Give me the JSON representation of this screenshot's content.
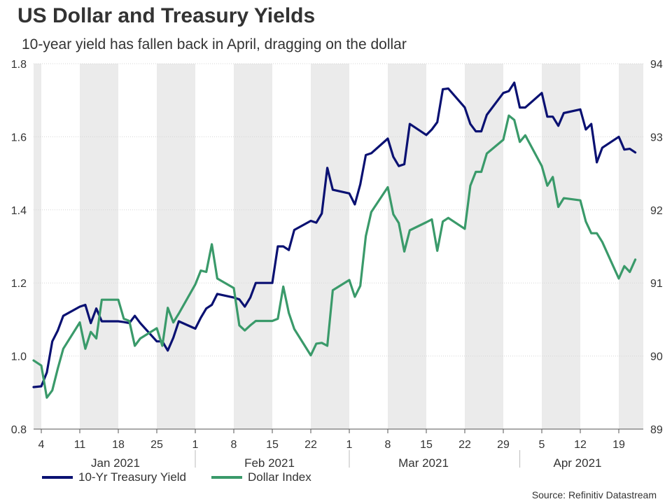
{
  "header": {
    "title": "US Dollar and Treasury Yields",
    "subtitle": "10-year yield has fallen back in April, dragging on the dollar"
  },
  "source": "Source: Refinitiv Datastream",
  "colors": {
    "yield": "#0a1172",
    "dollar": "#3a9a6a",
    "band": "#ebebeb",
    "grid": "#d6d6d6",
    "axis": "#555555"
  },
  "chart_data": {
    "type": "line",
    "x_axis": {
      "start": "2021-01-04",
      "end": "2021-04-23",
      "ticks": [
        {
          "date": "2021-01-04",
          "label": "4"
        },
        {
          "date": "2021-01-11",
          "label": "11"
        },
        {
          "date": "2021-01-18",
          "label": "18"
        },
        {
          "date": "2021-01-25",
          "label": "25"
        },
        {
          "date": "2021-02-01",
          "label": "1"
        },
        {
          "date": "2021-02-08",
          "label": "8"
        },
        {
          "date": "2021-02-15",
          "label": "15"
        },
        {
          "date": "2021-02-22",
          "label": "22"
        },
        {
          "date": "2021-03-01",
          "label": "1"
        },
        {
          "date": "2021-03-08",
          "label": "8"
        },
        {
          "date": "2021-03-15",
          "label": "15"
        },
        {
          "date": "2021-03-22",
          "label": "22"
        },
        {
          "date": "2021-03-29",
          "label": "29"
        },
        {
          "date": "2021-04-05",
          "label": "5"
        },
        {
          "date": "2021-04-12",
          "label": "12"
        },
        {
          "date": "2021-04-19",
          "label": "19"
        }
      ],
      "months": [
        {
          "label": "Jan 2021",
          "date": "2021-01-18"
        },
        {
          "label": "Feb 2021",
          "date": "2021-02-15"
        },
        {
          "label": "Mar 2021",
          "date": "2021-03-15"
        },
        {
          "label": "Apr 2021",
          "date": "2021-04-12"
        }
      ]
    },
    "y_left": {
      "min": 0.8,
      "max": 1.8,
      "ticks": [
        0.8,
        1.0,
        1.2,
        1.4,
        1.6,
        1.8
      ],
      "labels": [
        "0.8",
        "1.0",
        "1.2",
        "1.4",
        "1.6",
        "1.8"
      ]
    },
    "y_right": {
      "min": 89,
      "max": 94,
      "ticks": [
        89,
        90,
        91,
        92,
        93,
        94
      ],
      "labels": [
        "89",
        "90",
        "91",
        "92",
        "93",
        "94"
      ]
    },
    "grid": true,
    "legend_position": "bottom-left",
    "series": [
      {
        "name": "10-Yr Treasury Yield",
        "axis": "left",
        "points": [
          [
            "2021-01-01",
            0.915
          ],
          [
            "2021-01-04",
            0.917
          ],
          [
            "2021-01-05",
            0.955
          ],
          [
            "2021-01-06",
            1.04
          ],
          [
            "2021-01-07",
            1.07
          ],
          [
            "2021-01-08",
            1.11
          ],
          [
            "2021-01-11",
            1.135
          ],
          [
            "2021-01-12",
            1.14
          ],
          [
            "2021-01-13",
            1.09
          ],
          [
            "2021-01-14",
            1.13
          ],
          [
            "2021-01-15",
            1.095
          ],
          [
            "2021-01-18",
            1.095
          ],
          [
            "2021-01-19",
            1.093
          ],
          [
            "2021-01-20",
            1.09
          ],
          [
            "2021-01-21",
            1.11
          ],
          [
            "2021-01-22",
            1.09
          ],
          [
            "2021-01-25",
            1.04
          ],
          [
            "2021-01-26",
            1.04
          ],
          [
            "2021-01-27",
            1.015
          ],
          [
            "2021-01-28",
            1.05
          ],
          [
            "2021-01-29",
            1.095
          ],
          [
            "2021-02-01",
            1.075
          ],
          [
            "2021-02-02",
            1.105
          ],
          [
            "2021-02-03",
            1.13
          ],
          [
            "2021-02-04",
            1.14
          ],
          [
            "2021-02-05",
            1.17
          ],
          [
            "2021-02-08",
            1.16
          ],
          [
            "2021-02-09",
            1.155
          ],
          [
            "2021-02-10",
            1.135
          ],
          [
            "2021-02-11",
            1.16
          ],
          [
            "2021-02-12",
            1.2
          ],
          [
            "2021-02-15",
            1.2
          ],
          [
            "2021-02-16",
            1.3
          ],
          [
            "2021-02-17",
            1.3
          ],
          [
            "2021-02-18",
            1.29
          ],
          [
            "2021-02-19",
            1.345
          ],
          [
            "2021-02-22",
            1.37
          ],
          [
            "2021-02-23",
            1.365
          ],
          [
            "2021-02-24",
            1.39
          ],
          [
            "2021-02-25",
            1.515
          ],
          [
            "2021-02-26",
            1.455
          ],
          [
            "2021-03-01",
            1.445
          ],
          [
            "2021-03-02",
            1.415
          ],
          [
            "2021-03-03",
            1.47
          ],
          [
            "2021-03-04",
            1.55
          ],
          [
            "2021-03-05",
            1.555
          ],
          [
            "2021-03-08",
            1.595
          ],
          [
            "2021-03-09",
            1.545
          ],
          [
            "2021-03-10",
            1.52
          ],
          [
            "2021-03-11",
            1.525
          ],
          [
            "2021-03-12",
            1.635
          ],
          [
            "2021-03-15",
            1.605
          ],
          [
            "2021-03-16",
            1.62
          ],
          [
            "2021-03-17",
            1.64
          ],
          [
            "2021-03-18",
            1.73
          ],
          [
            "2021-03-19",
            1.732
          ],
          [
            "2021-03-22",
            1.68
          ],
          [
            "2021-03-23",
            1.635
          ],
          [
            "2021-03-24",
            1.615
          ],
          [
            "2021-03-25",
            1.615
          ],
          [
            "2021-03-26",
            1.66
          ],
          [
            "2021-03-29",
            1.72
          ],
          [
            "2021-03-30",
            1.725
          ],
          [
            "2021-03-31",
            1.748
          ],
          [
            "2021-04-01",
            1.68
          ],
          [
            "2021-04-02",
            1.68
          ],
          [
            "2021-04-05",
            1.72
          ],
          [
            "2021-04-06",
            1.655
          ],
          [
            "2021-04-07",
            1.655
          ],
          [
            "2021-04-08",
            1.63
          ],
          [
            "2021-04-09",
            1.665
          ],
          [
            "2021-04-12",
            1.675
          ],
          [
            "2021-04-13",
            1.62
          ],
          [
            "2021-04-14",
            1.635
          ],
          [
            "2021-04-15",
            1.53
          ],
          [
            "2021-04-16",
            1.57
          ],
          [
            "2021-04-19",
            1.6
          ],
          [
            "2021-04-20",
            1.565
          ],
          [
            "2021-04-21",
            1.567
          ],
          [
            "2021-04-22",
            1.557
          ]
        ]
      },
      {
        "name": "Dollar Index",
        "axis": "right",
        "points": [
          [
            "2021-01-01",
            89.94
          ],
          [
            "2021-01-04",
            89.87
          ],
          [
            "2021-01-05",
            89.43
          ],
          [
            "2021-01-06",
            89.53
          ],
          [
            "2021-01-07",
            89.83
          ],
          [
            "2021-01-08",
            90.1
          ],
          [
            "2021-01-11",
            90.46
          ],
          [
            "2021-01-12",
            90.1
          ],
          [
            "2021-01-13",
            90.33
          ],
          [
            "2021-01-14",
            90.24
          ],
          [
            "2021-01-15",
            90.77
          ],
          [
            "2021-01-18",
            90.77
          ],
          [
            "2021-01-19",
            90.51
          ],
          [
            "2021-01-20",
            90.48
          ],
          [
            "2021-01-21",
            90.14
          ],
          [
            "2021-01-22",
            90.24
          ],
          [
            "2021-01-25",
            90.38
          ],
          [
            "2021-01-26",
            90.14
          ],
          [
            "2021-01-27",
            90.66
          ],
          [
            "2021-01-28",
            90.46
          ],
          [
            "2021-01-29",
            90.58
          ],
          [
            "2021-02-01",
            90.98
          ],
          [
            "2021-02-02",
            91.17
          ],
          [
            "2021-02-03",
            91.15
          ],
          [
            "2021-02-04",
            91.53
          ],
          [
            "2021-02-05",
            91.06
          ],
          [
            "2021-02-08",
            90.93
          ],
          [
            "2021-02-09",
            90.42
          ],
          [
            "2021-02-10",
            90.35
          ],
          [
            "2021-02-11",
            90.42
          ],
          [
            "2021-02-12",
            90.48
          ],
          [
            "2021-02-15",
            90.48
          ],
          [
            "2021-02-16",
            90.51
          ],
          [
            "2021-02-17",
            90.95
          ],
          [
            "2021-02-18",
            90.59
          ],
          [
            "2021-02-19",
            90.37
          ],
          [
            "2021-02-22",
            90.01
          ],
          [
            "2021-02-23",
            90.17
          ],
          [
            "2021-02-24",
            90.18
          ],
          [
            "2021-02-25",
            90.14
          ],
          [
            "2021-02-26",
            90.9
          ],
          [
            "2021-03-01",
            91.04
          ],
          [
            "2021-03-02",
            90.81
          ],
          [
            "2021-03-03",
            90.96
          ],
          [
            "2021-03-04",
            91.64
          ],
          [
            "2021-03-05",
            91.97
          ],
          [
            "2021-03-08",
            92.31
          ],
          [
            "2021-03-09",
            91.94
          ],
          [
            "2021-03-10",
            91.82
          ],
          [
            "2021-03-11",
            91.43
          ],
          [
            "2021-03-12",
            91.72
          ],
          [
            "2021-03-15",
            91.83
          ],
          [
            "2021-03-16",
            91.87
          ],
          [
            "2021-03-17",
            91.44
          ],
          [
            "2021-03-18",
            91.84
          ],
          [
            "2021-03-19",
            91.89
          ],
          [
            "2021-03-22",
            91.74
          ],
          [
            "2021-03-23",
            92.33
          ],
          [
            "2021-03-24",
            92.52
          ],
          [
            "2021-03-25",
            92.52
          ],
          [
            "2021-03-26",
            92.77
          ],
          [
            "2021-03-29",
            92.96
          ],
          [
            "2021-03-30",
            93.29
          ],
          [
            "2021-03-31",
            93.23
          ],
          [
            "2021-04-01",
            92.93
          ],
          [
            "2021-04-02",
            93.02
          ],
          [
            "2021-04-05",
            92.6
          ],
          [
            "2021-04-06",
            92.33
          ],
          [
            "2021-04-07",
            92.45
          ],
          [
            "2021-04-08",
            92.04
          ],
          [
            "2021-04-09",
            92.16
          ],
          [
            "2021-04-12",
            92.13
          ],
          [
            "2021-04-13",
            91.84
          ],
          [
            "2021-04-14",
            91.68
          ],
          [
            "2021-04-15",
            91.68
          ],
          [
            "2021-04-16",
            91.56
          ],
          [
            "2021-04-19",
            91.06
          ],
          [
            "2021-04-20",
            91.23
          ],
          [
            "2021-04-21",
            91.15
          ],
          [
            "2021-04-22",
            91.32
          ]
        ]
      }
    ]
  }
}
